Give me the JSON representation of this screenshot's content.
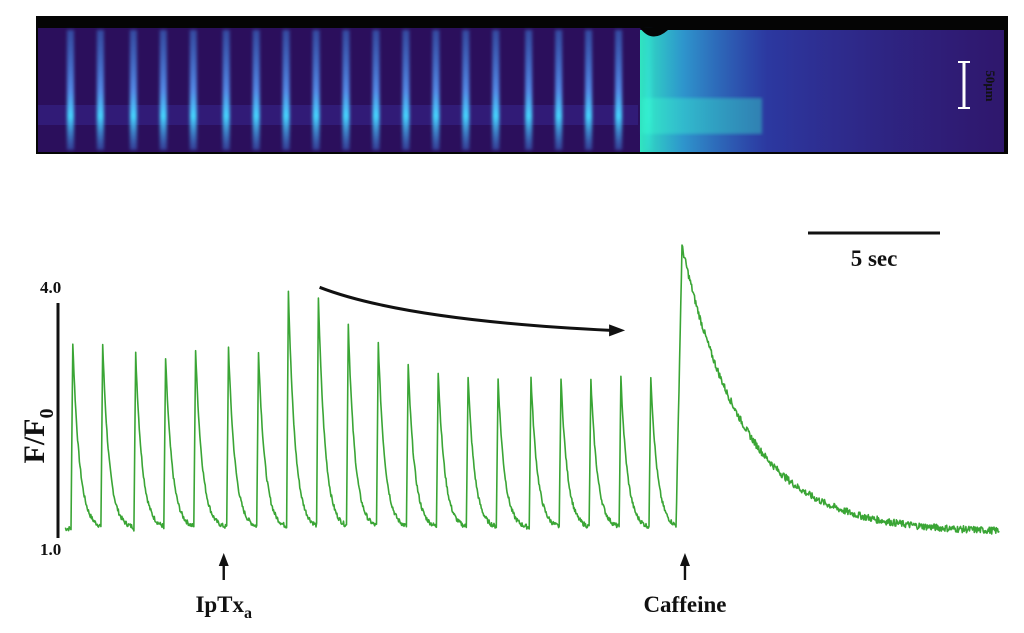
{
  "chart_data": {
    "type": "line",
    "title": "",
    "xlabel": "",
    "ylabel_main": "F/F",
    "ylabel_sub": "0",
    "y_axis": {
      "max_label": "4.0",
      "min_label": "1.0",
      "ylim": [
        1.0,
        4.0
      ]
    },
    "scale_bars": {
      "time": {
        "label": "5 sec",
        "seconds": 5
      },
      "space": {
        "label": "50μm"
      }
    },
    "annotations": [
      {
        "label_main": "IpTx",
        "label_sub": "a",
        "time_s": 5.3
      },
      {
        "label_main": "Caffeine",
        "label_sub": "",
        "time_s": 20.7
      }
    ],
    "transients": {
      "description_unit": "F/F0",
      "baseline": 1.12,
      "decay_tau_s": 0.22,
      "times_s": [
        0.2,
        1.2,
        2.3,
        3.3,
        4.3,
        5.4,
        6.4,
        7.4,
        8.4,
        9.4,
        10.4,
        11.4,
        12.4,
        13.4,
        14.4,
        15.5,
        16.5,
        17.5,
        18.5,
        19.5
      ],
      "peaks": [
        3.5,
        3.47,
        3.35,
        3.29,
        3.4,
        3.43,
        3.39,
        4.16,
        4.08,
        3.73,
        3.49,
        3.2,
        3.12,
        3.06,
        3.03,
        3.05,
        3.03,
        3.01,
        3.04,
        3.07
      ]
    },
    "caffeine_response": {
      "onset_s": 20.4,
      "peak_s": 20.6,
      "peak": 4.72,
      "decay_tau_s": 2.1,
      "plateau": 1.07,
      "end_s": 31.2
    },
    "trend_arrow": {
      "from_s": 8.5,
      "to_s": 18.7,
      "from_value": 4.2,
      "to_value": 3.65
    }
  },
  "colors": {
    "trace": "#3aa535",
    "axis": "#111111",
    "arrow": "#111111",
    "linescan_bg": "#2b0f5c",
    "linescan_hot": "#2ff0c8"
  }
}
